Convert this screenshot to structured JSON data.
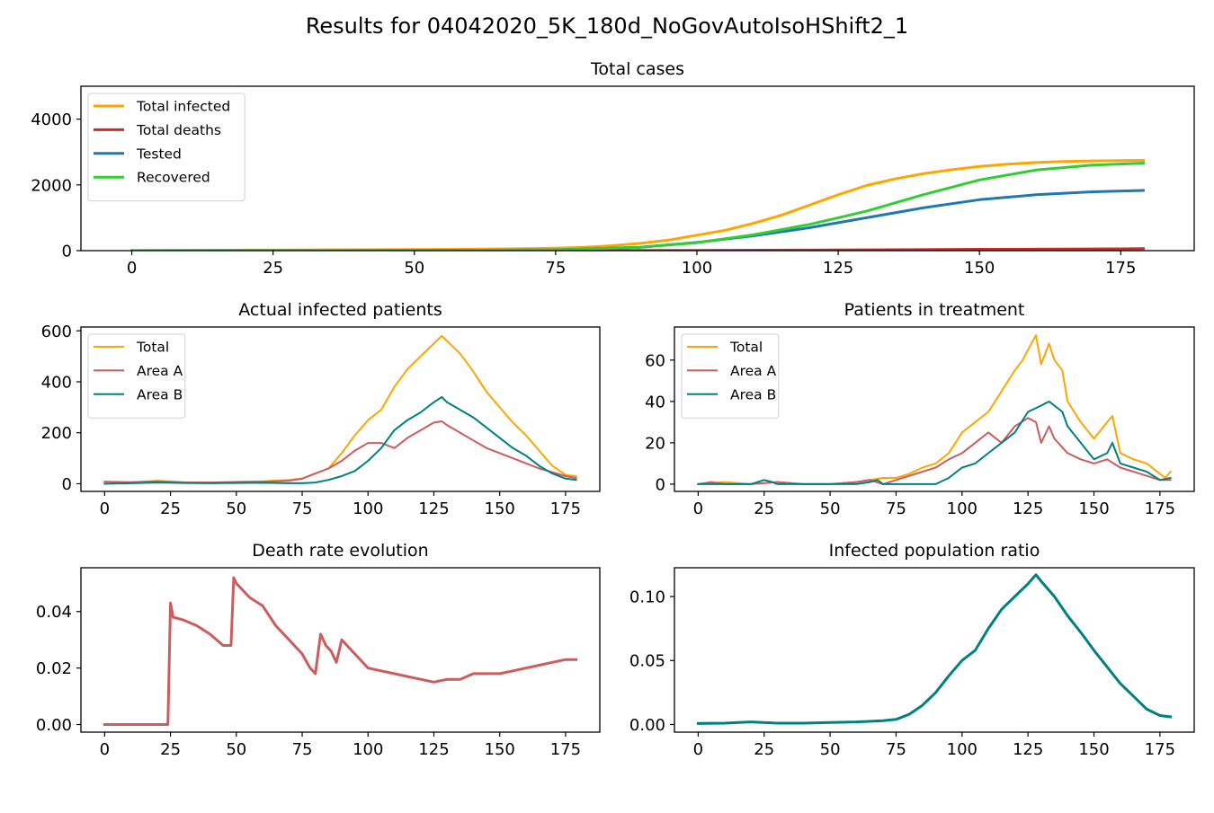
{
  "figure": {
    "suptitle": "Results for 04042020_5K_180d_NoGovAutoIsoHShift2_1"
  },
  "chart_data": [
    {
      "id": "total-cases",
      "type": "line",
      "title": "Total cases",
      "xlabel": "",
      "ylabel": "",
      "xlim": [
        -9,
        188
      ],
      "ylim": [
        0,
        5000
      ],
      "xticks": [
        0,
        25,
        50,
        75,
        100,
        125,
        150,
        175
      ],
      "yticks": [
        0,
        2000,
        4000
      ],
      "legend": "top-left",
      "line_width": 3,
      "series": [
        {
          "name": "Total infected",
          "color": "#ffa500",
          "x": [
            0,
            10,
            20,
            30,
            40,
            50,
            60,
            70,
            75,
            80,
            85,
            90,
            95,
            100,
            105,
            110,
            115,
            120,
            125,
            130,
            135,
            140,
            145,
            150,
            155,
            160,
            165,
            170,
            175,
            179
          ],
          "values": [
            8,
            12,
            16,
            22,
            28,
            35,
            45,
            60,
            75,
            100,
            150,
            220,
            320,
            470,
            620,
            830,
            1080,
            1390,
            1700,
            1980,
            2180,
            2340,
            2460,
            2560,
            2630,
            2680,
            2710,
            2730,
            2740,
            2745
          ]
        },
        {
          "name": "Total deaths",
          "color": "#d62728",
          "x": [
            0,
            25,
            50,
            75,
            100,
            125,
            150,
            175,
            179
          ],
          "values": [
            0,
            1,
            2,
            3,
            8,
            22,
            40,
            55,
            60
          ]
        },
        {
          "name": "Tested",
          "color": "#1f77b4",
          "x": [
            0,
            50,
            75,
            90,
            100,
            110,
            120,
            130,
            140,
            150,
            160,
            170,
            179
          ],
          "values": [
            0,
            5,
            25,
            100,
            250,
            450,
            700,
            1000,
            1300,
            1550,
            1700,
            1790,
            1830
          ]
        },
        {
          "name": "Recovered",
          "color": "#32cd32",
          "x": [
            0,
            50,
            75,
            90,
            100,
            110,
            120,
            125,
            130,
            140,
            150,
            160,
            170,
            179
          ],
          "values": [
            0,
            5,
            20,
            100,
            240,
            480,
            800,
            1000,
            1200,
            1700,
            2150,
            2450,
            2600,
            2660
          ]
        }
      ]
    },
    {
      "id": "actual-infected",
      "type": "line",
      "title": "Actual infected patients",
      "xlabel": "",
      "ylabel": "",
      "xlim": [
        -9,
        188
      ],
      "ylim": [
        -30,
        615
      ],
      "xticks": [
        0,
        25,
        50,
        75,
        100,
        125,
        150,
        175
      ],
      "yticks": [
        0,
        200,
        400,
        600
      ],
      "legend": "top-left",
      "line_width": 2,
      "series": [
        {
          "name": "Total",
          "color": "#ffa500",
          "x": [
            0,
            10,
            20,
            30,
            40,
            50,
            60,
            70,
            75,
            80,
            85,
            90,
            95,
            100,
            105,
            110,
            115,
            120,
            125,
            128,
            130,
            135,
            140,
            145,
            150,
            155,
            160,
            165,
            170,
            175,
            179
          ],
          "values": [
            8,
            5,
            12,
            6,
            5,
            8,
            10,
            15,
            20,
            40,
            60,
            120,
            190,
            250,
            290,
            380,
            450,
            500,
            550,
            580,
            560,
            510,
            440,
            360,
            300,
            240,
            190,
            130,
            70,
            35,
            30
          ]
        },
        {
          "name": "Area A",
          "color": "#cd5c5c",
          "x": [
            0,
            10,
            20,
            30,
            40,
            50,
            60,
            70,
            75,
            80,
            85,
            90,
            95,
            100,
            105,
            110,
            115,
            120,
            125,
            128,
            130,
            135,
            140,
            145,
            150,
            155,
            160,
            165,
            170,
            175,
            179
          ],
          "values": [
            8,
            6,
            10,
            5,
            5,
            6,
            8,
            12,
            20,
            40,
            60,
            90,
            130,
            160,
            160,
            140,
            180,
            210,
            240,
            245,
            230,
            200,
            170,
            140,
            120,
            100,
            80,
            60,
            45,
            30,
            22
          ]
        },
        {
          "name": "Area B",
          "color": "#008080",
          "x": [
            0,
            10,
            20,
            30,
            40,
            50,
            60,
            70,
            75,
            80,
            85,
            90,
            95,
            100,
            105,
            110,
            115,
            120,
            125,
            128,
            130,
            135,
            140,
            145,
            150,
            155,
            160,
            165,
            170,
            175,
            179
          ],
          "values": [
            0,
            2,
            5,
            3,
            2,
            3,
            4,
            2,
            2,
            5,
            15,
            30,
            50,
            90,
            140,
            210,
            250,
            280,
            320,
            340,
            320,
            290,
            260,
            220,
            180,
            140,
            110,
            70,
            40,
            20,
            15
          ]
        }
      ]
    },
    {
      "id": "patients-treatment",
      "type": "line",
      "title": "Patients in treatment",
      "xlabel": "",
      "ylabel": "",
      "xlim": [
        -9,
        188
      ],
      "ylim": [
        -3.5,
        76
      ],
      "xticks": [
        0,
        25,
        50,
        75,
        100,
        125,
        150,
        175
      ],
      "yticks": [
        0,
        20,
        40,
        60
      ],
      "legend": "top-left",
      "line_width": 2,
      "series": [
        {
          "name": "Total",
          "color": "#ffa500",
          "x": [
            0,
            10,
            20,
            30,
            40,
            50,
            60,
            65,
            70,
            75,
            80,
            85,
            90,
            95,
            100,
            105,
            110,
            115,
            120,
            123,
            125,
            128,
            130,
            133,
            135,
            138,
            140,
            145,
            150,
            155,
            157,
            160,
            165,
            170,
            175,
            177,
            179
          ],
          "values": [
            0,
            1,
            0,
            1,
            0,
            0,
            1,
            2,
            3,
            3,
            5,
            8,
            10,
            15,
            25,
            30,
            35,
            45,
            55,
            60,
            65,
            72,
            58,
            68,
            60,
            55,
            40,
            30,
            22,
            30,
            33,
            15,
            12,
            10,
            5,
            3,
            6
          ]
        },
        {
          "name": "Area A",
          "color": "#cd5c5c",
          "x": [
            0,
            5,
            10,
            20,
            30,
            40,
            50,
            60,
            65,
            70,
            75,
            80,
            85,
            90,
            95,
            100,
            105,
            110,
            115,
            120,
            125,
            128,
            130,
            133,
            135,
            140,
            145,
            150,
            155,
            160,
            165,
            170,
            175,
            179
          ],
          "values": [
            0,
            1,
            0,
            0,
            1,
            0,
            0,
            1,
            2,
            0,
            2,
            4,
            6,
            8,
            12,
            15,
            20,
            25,
            20,
            28,
            32,
            30,
            20,
            28,
            22,
            15,
            12,
            10,
            12,
            8,
            6,
            4,
            2,
            2
          ]
        },
        {
          "name": "Area B",
          "color": "#008080",
          "x": [
            0,
            10,
            20,
            25,
            28,
            30,
            40,
            50,
            60,
            65,
            68,
            70,
            80,
            90,
            95,
            100,
            105,
            110,
            115,
            120,
            125,
            130,
            133,
            135,
            138,
            140,
            145,
            150,
            155,
            157,
            160,
            165,
            170,
            175,
            179
          ],
          "values": [
            0,
            0,
            0,
            2,
            1,
            0,
            0,
            0,
            0,
            1,
            2,
            0,
            0,
            0,
            3,
            8,
            10,
            15,
            20,
            25,
            35,
            38,
            40,
            38,
            35,
            28,
            20,
            12,
            15,
            20,
            10,
            8,
            6,
            2,
            3
          ]
        }
      ]
    },
    {
      "id": "death-rate",
      "type": "line",
      "title": "Death rate evolution",
      "xlabel": "",
      "ylabel": "",
      "xlim": [
        -9,
        188
      ],
      "ylim": [
        -0.0027,
        0.0555
      ],
      "xticks": [
        0,
        25,
        50,
        75,
        100,
        125,
        150,
        175
      ],
      "yticks": [
        0.0,
        0.02,
        0.04
      ],
      "ytick_labels": [
        "0.00",
        "0.02",
        "0.04"
      ],
      "legend": "none",
      "line_width": 3,
      "series": [
        {
          "name": "",
          "color": "#cd5c5c",
          "x": [
            0,
            24,
            25,
            26,
            30,
            35,
            40,
            45,
            48,
            49,
            50,
            55,
            60,
            65,
            70,
            75,
            78,
            80,
            82,
            84,
            86,
            88,
            90,
            95,
            100,
            105,
            110,
            115,
            120,
            125,
            130,
            135,
            140,
            145,
            150,
            155,
            160,
            165,
            170,
            175,
            179
          ],
          "values": [
            0,
            0,
            0.043,
            0.038,
            0.037,
            0.035,
            0.032,
            0.028,
            0.028,
            0.052,
            0.05,
            0.045,
            0.042,
            0.035,
            0.03,
            0.025,
            0.02,
            0.018,
            0.032,
            0.028,
            0.026,
            0.022,
            0.03,
            0.025,
            0.02,
            0.019,
            0.018,
            0.017,
            0.016,
            0.015,
            0.016,
            0.016,
            0.018,
            0.018,
            0.018,
            0.019,
            0.02,
            0.021,
            0.022,
            0.023,
            0.023
          ]
        }
      ]
    },
    {
      "id": "infected-ratio",
      "type": "line",
      "title": "Infected population ratio",
      "xlabel": "",
      "ylabel": "",
      "xlim": [
        -9,
        188
      ],
      "ylim": [
        -0.006,
        0.1225
      ],
      "xticks": [
        0,
        25,
        50,
        75,
        100,
        125,
        150,
        175
      ],
      "yticks": [
        0.0,
        0.05,
        0.1
      ],
      "ytick_labels": [
        "0.00",
        "0.05",
        "0.10"
      ],
      "legend": "none",
      "line_width": 3,
      "series": [
        {
          "name": "",
          "color": "#008080",
          "x": [
            0,
            10,
            20,
            30,
            40,
            50,
            60,
            70,
            75,
            80,
            85,
            90,
            95,
            100,
            105,
            110,
            115,
            120,
            125,
            128,
            130,
            135,
            140,
            145,
            150,
            155,
            160,
            165,
            170,
            175,
            179
          ],
          "values": [
            0.0008,
            0.001,
            0.002,
            0.001,
            0.001,
            0.0015,
            0.002,
            0.003,
            0.004,
            0.008,
            0.015,
            0.025,
            0.038,
            0.05,
            0.058,
            0.075,
            0.09,
            0.1,
            0.11,
            0.117,
            0.112,
            0.1,
            0.085,
            0.072,
            0.058,
            0.045,
            0.032,
            0.022,
            0.012,
            0.007,
            0.006
          ]
        }
      ]
    }
  ]
}
